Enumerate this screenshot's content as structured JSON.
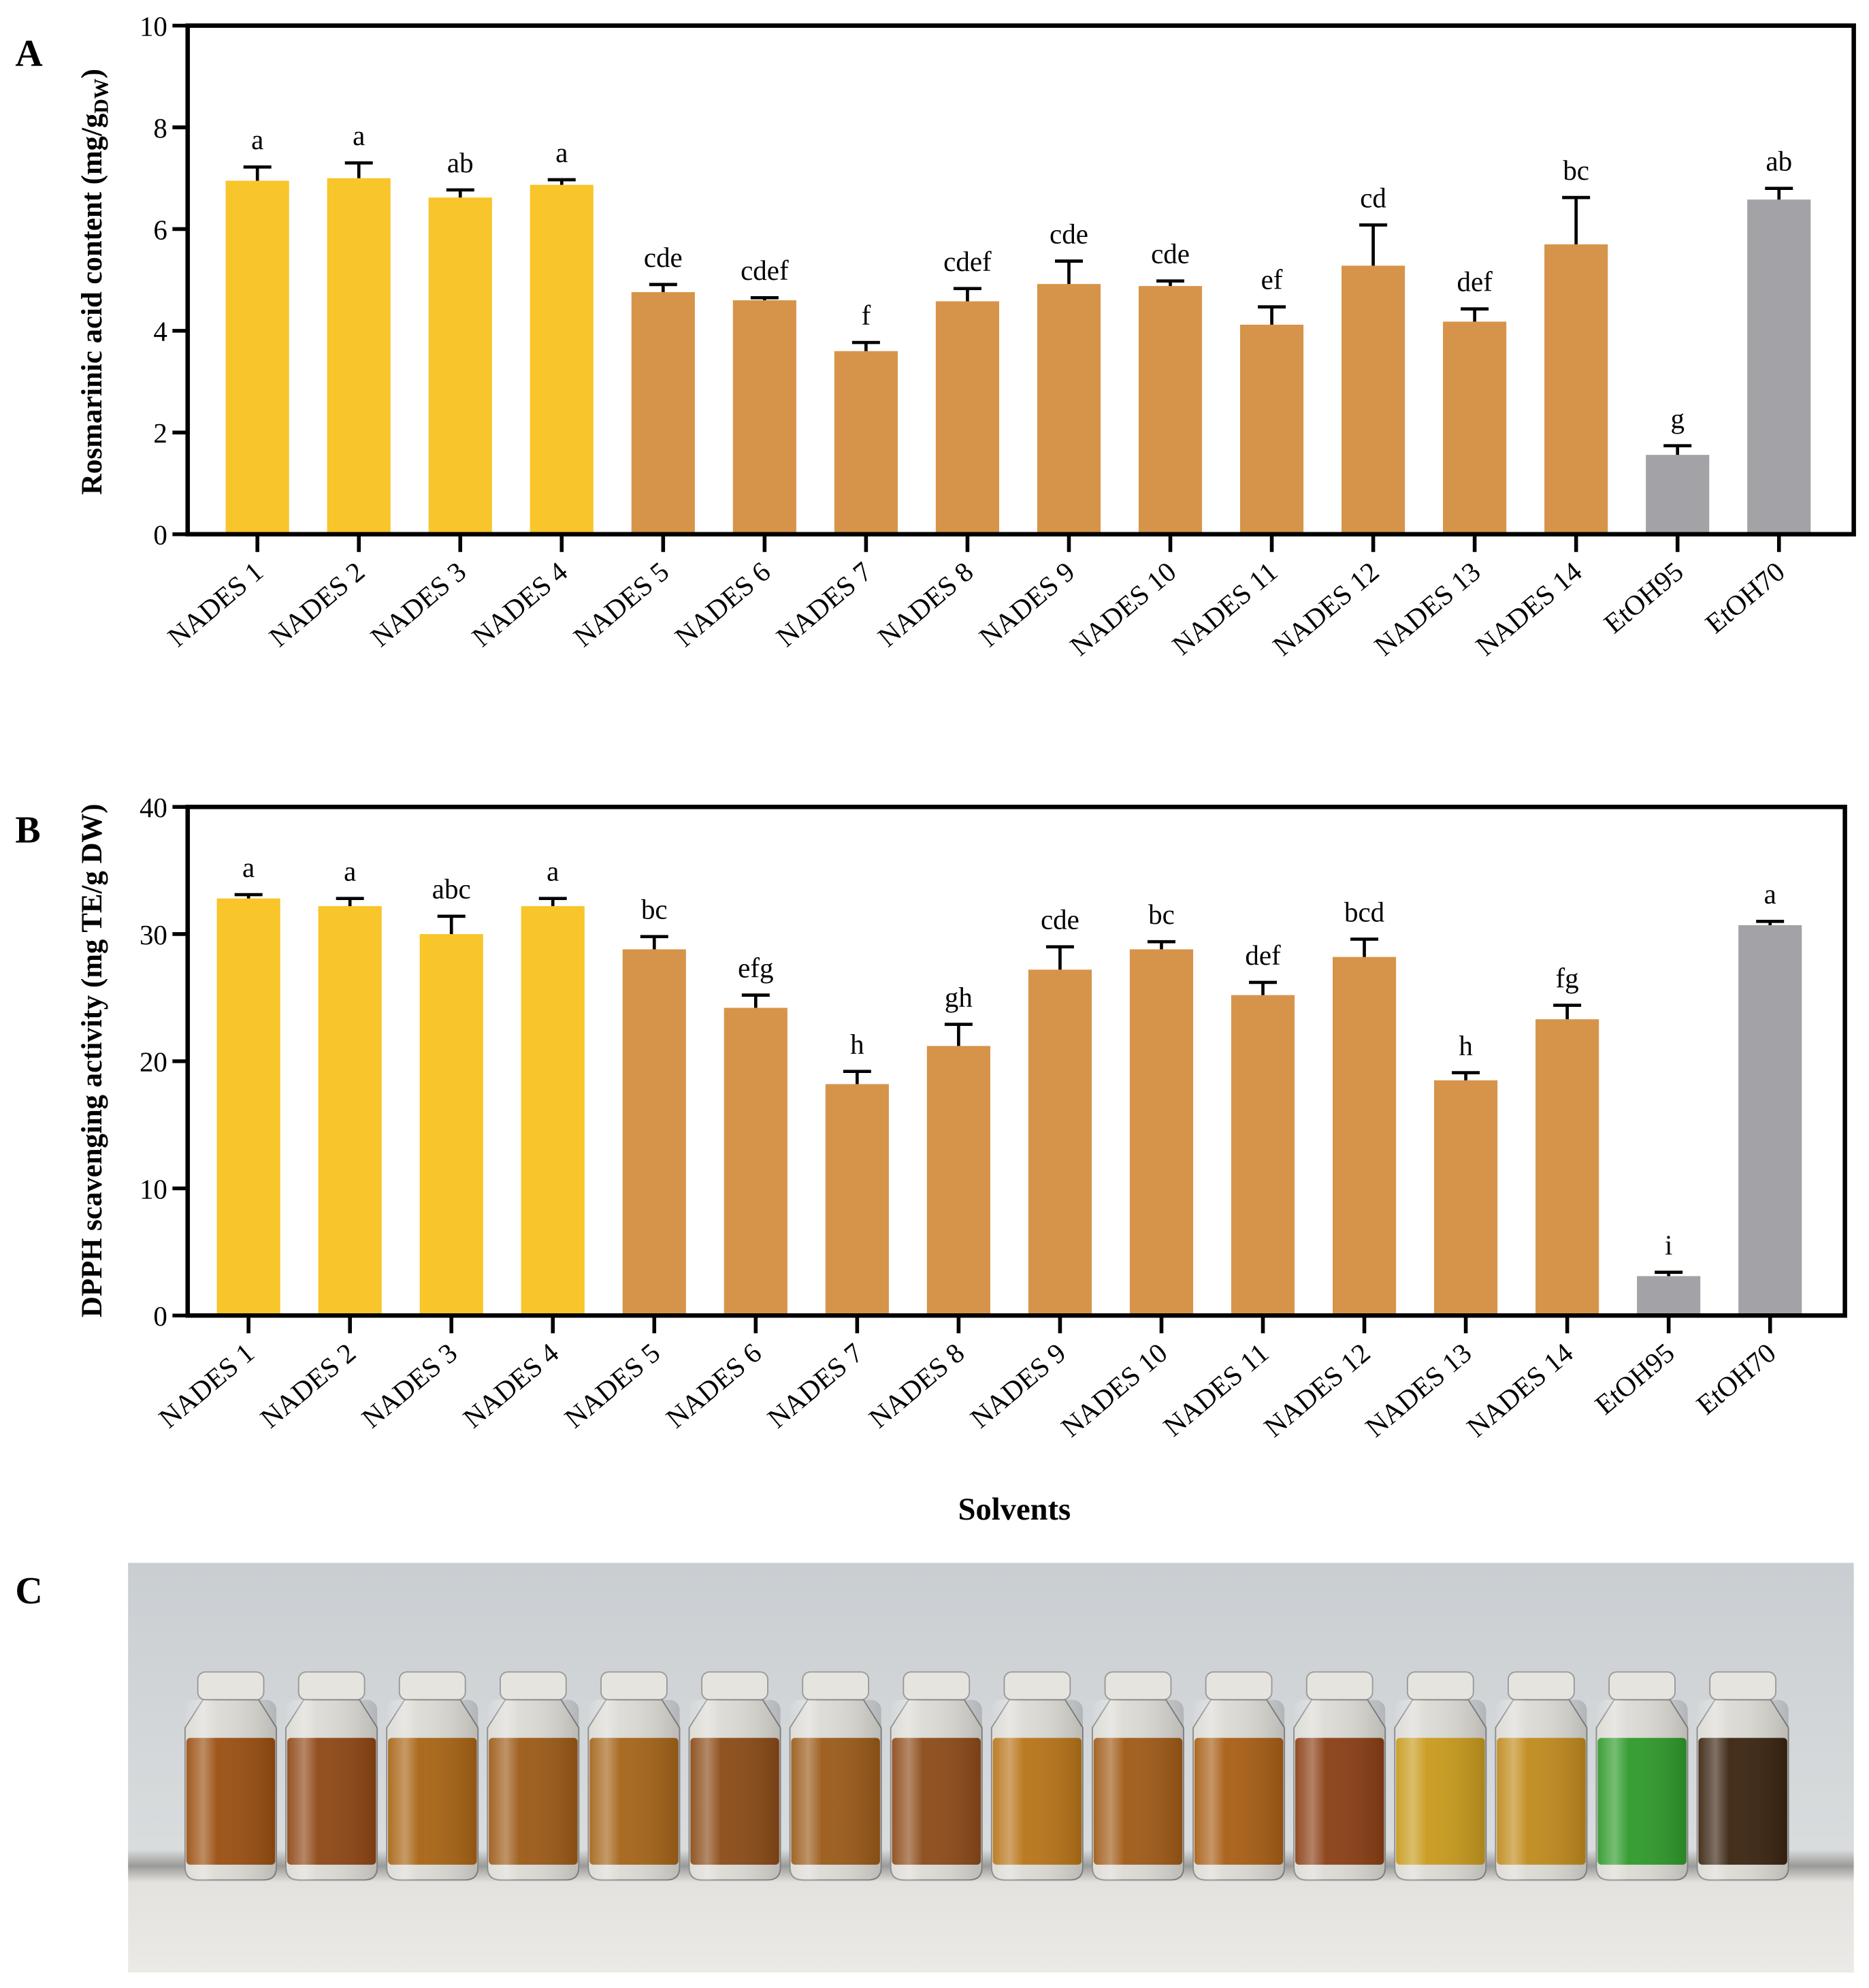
{
  "panel_labels": {
    "a": "A",
    "b": "B",
    "c": "C"
  },
  "xlabel": "Solvents",
  "colors": {
    "group1": "#F8C52A",
    "group2": "#D6944A",
    "control": "#A3A3A7"
  },
  "chart_data": [
    {
      "type": "bar",
      "title": "",
      "ylabel": "Rosmarinic acid content (mg/g DW)",
      "ylabel_main": "Rosmarinic acid content (mg/g",
      "ylabel_sub": "DW",
      "ylabel_close": ")",
      "ylim": [
        0,
        10
      ],
      "yticks": [
        0,
        2,
        4,
        6,
        8,
        10
      ],
      "categories": [
        "NADES 1",
        "NADES 2",
        "NADES 3",
        "NADES 4",
        "NADES 5",
        "NADES 6",
        "NADES 7",
        "NADES 8",
        "NADES 9",
        "NADES 10",
        "NADES 11",
        "NADES 12",
        "NADES 13",
        "NADES 14",
        "EtOH95",
        "EtOH70"
      ],
      "values": [
        6.95,
        7.0,
        6.62,
        6.87,
        4.76,
        4.6,
        3.6,
        4.58,
        4.92,
        4.88,
        4.12,
        5.28,
        4.18,
        5.7,
        1.56,
        6.58
      ],
      "errors": [
        0.27,
        0.3,
        0.15,
        0.1,
        0.15,
        0.05,
        0.17,
        0.25,
        0.45,
        0.1,
        0.35,
        0.8,
        0.25,
        0.92,
        0.18,
        0.22
      ],
      "letters": [
        "a",
        "a",
        "ab",
        "a",
        "cde",
        "cdef",
        "f",
        "cdef",
        "cde",
        "cde",
        "ef",
        "cd",
        "def",
        "bc",
        "g",
        "ab"
      ],
      "groups": [
        "group1",
        "group1",
        "group1",
        "group1",
        "group2",
        "group2",
        "group2",
        "group2",
        "group2",
        "group2",
        "group2",
        "group2",
        "group2",
        "group2",
        "control",
        "control"
      ]
    },
    {
      "type": "bar",
      "title": "",
      "ylabel": "DPPH  scavenging activity (mg TE/g DW)",
      "xlabel": "Solvents",
      "ylim": [
        0,
        40
      ],
      "yticks": [
        0,
        10,
        20,
        30,
        40
      ],
      "categories": [
        "NADES 1",
        "NADES 2",
        "NADES 3",
        "NADES 4",
        "NADES 5",
        "NADES 6",
        "NADES 7",
        "NADES 8",
        "NADES 9",
        "NADES 10",
        "NADES 11",
        "NADES 12",
        "NADES 13",
        "NADES 14",
        "EtOH95",
        "EtOH70"
      ],
      "values": [
        32.8,
        32.2,
        30.0,
        32.2,
        28.8,
        24.2,
        18.2,
        21.2,
        27.2,
        28.8,
        25.2,
        28.2,
        18.5,
        23.3,
        3.1,
        30.7
      ],
      "errors": [
        0.3,
        0.6,
        1.4,
        0.6,
        1.0,
        1.0,
        1.0,
        1.7,
        1.8,
        0.6,
        1.0,
        1.4,
        0.6,
        1.1,
        0.3,
        0.3
      ],
      "letters": [
        "a",
        "a",
        "abc",
        "a",
        "bc",
        "efg",
        "h",
        "gh",
        "cde",
        "bc",
        "def",
        "bcd",
        "h",
        "fg",
        "i",
        "a"
      ],
      "groups": [
        "group1",
        "group1",
        "group1",
        "group1",
        "group2",
        "group2",
        "group2",
        "group2",
        "group2",
        "group2",
        "group2",
        "group2",
        "group2",
        "group2",
        "control",
        "control"
      ]
    }
  ],
  "photo": {
    "vial_colors": [
      "#9A4E10",
      "#8E4614",
      "#A86414",
      "#9C5A16",
      "#A46418",
      "#8A4A16",
      "#9A5A18",
      "#8C4A18",
      "#B87418",
      "#A05A16",
      "#A85E14",
      "#8A3E14",
      "#C89A1C",
      "#C08A1C",
      "#2E9A2A",
      "#3A2410"
    ]
  }
}
